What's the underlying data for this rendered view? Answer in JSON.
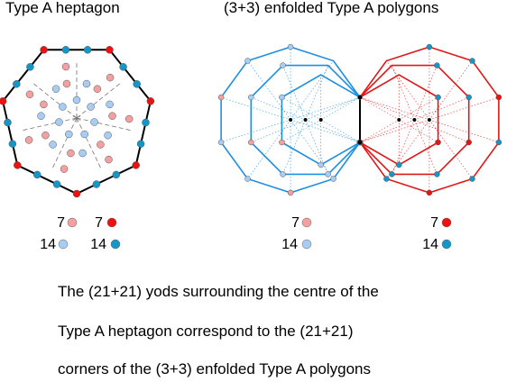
{
  "titles": {
    "left": "Type A heptagon",
    "right": "(3+3) enfolded  Type A polygons"
  },
  "legend_left": [
    {
      "count": "7",
      "color": "#f4a0a0"
    },
    {
      "count": "7",
      "color": "#ee1111"
    },
    {
      "count": "14",
      "color": "#a8cdf4"
    },
    {
      "count": "14",
      "color": "#1596c8"
    }
  ],
  "legend_right_light": [
    {
      "count": "7",
      "color": "#f4a0a0"
    },
    {
      "count": "14",
      "color": "#a8cdf4"
    }
  ],
  "legend_right_dark": [
    {
      "count": "7",
      "color": "#ee1111"
    },
    {
      "count": "14",
      "color": "#1596c8"
    }
  ],
  "caption": [
    "The (21+21) yods surrounding the centre of the",
    "Type A heptagon correspond to the (21+21)",
    "corners of the (3+3) enfolded Type A polygons"
  ],
  "colors": {
    "red": "#ee1111",
    "pink": "#f4a0a0",
    "blue": "#1596c8",
    "lightblue": "#a8cdf4",
    "line_blue": "#1e8fe0",
    "line_red": "#e01818"
  }
}
